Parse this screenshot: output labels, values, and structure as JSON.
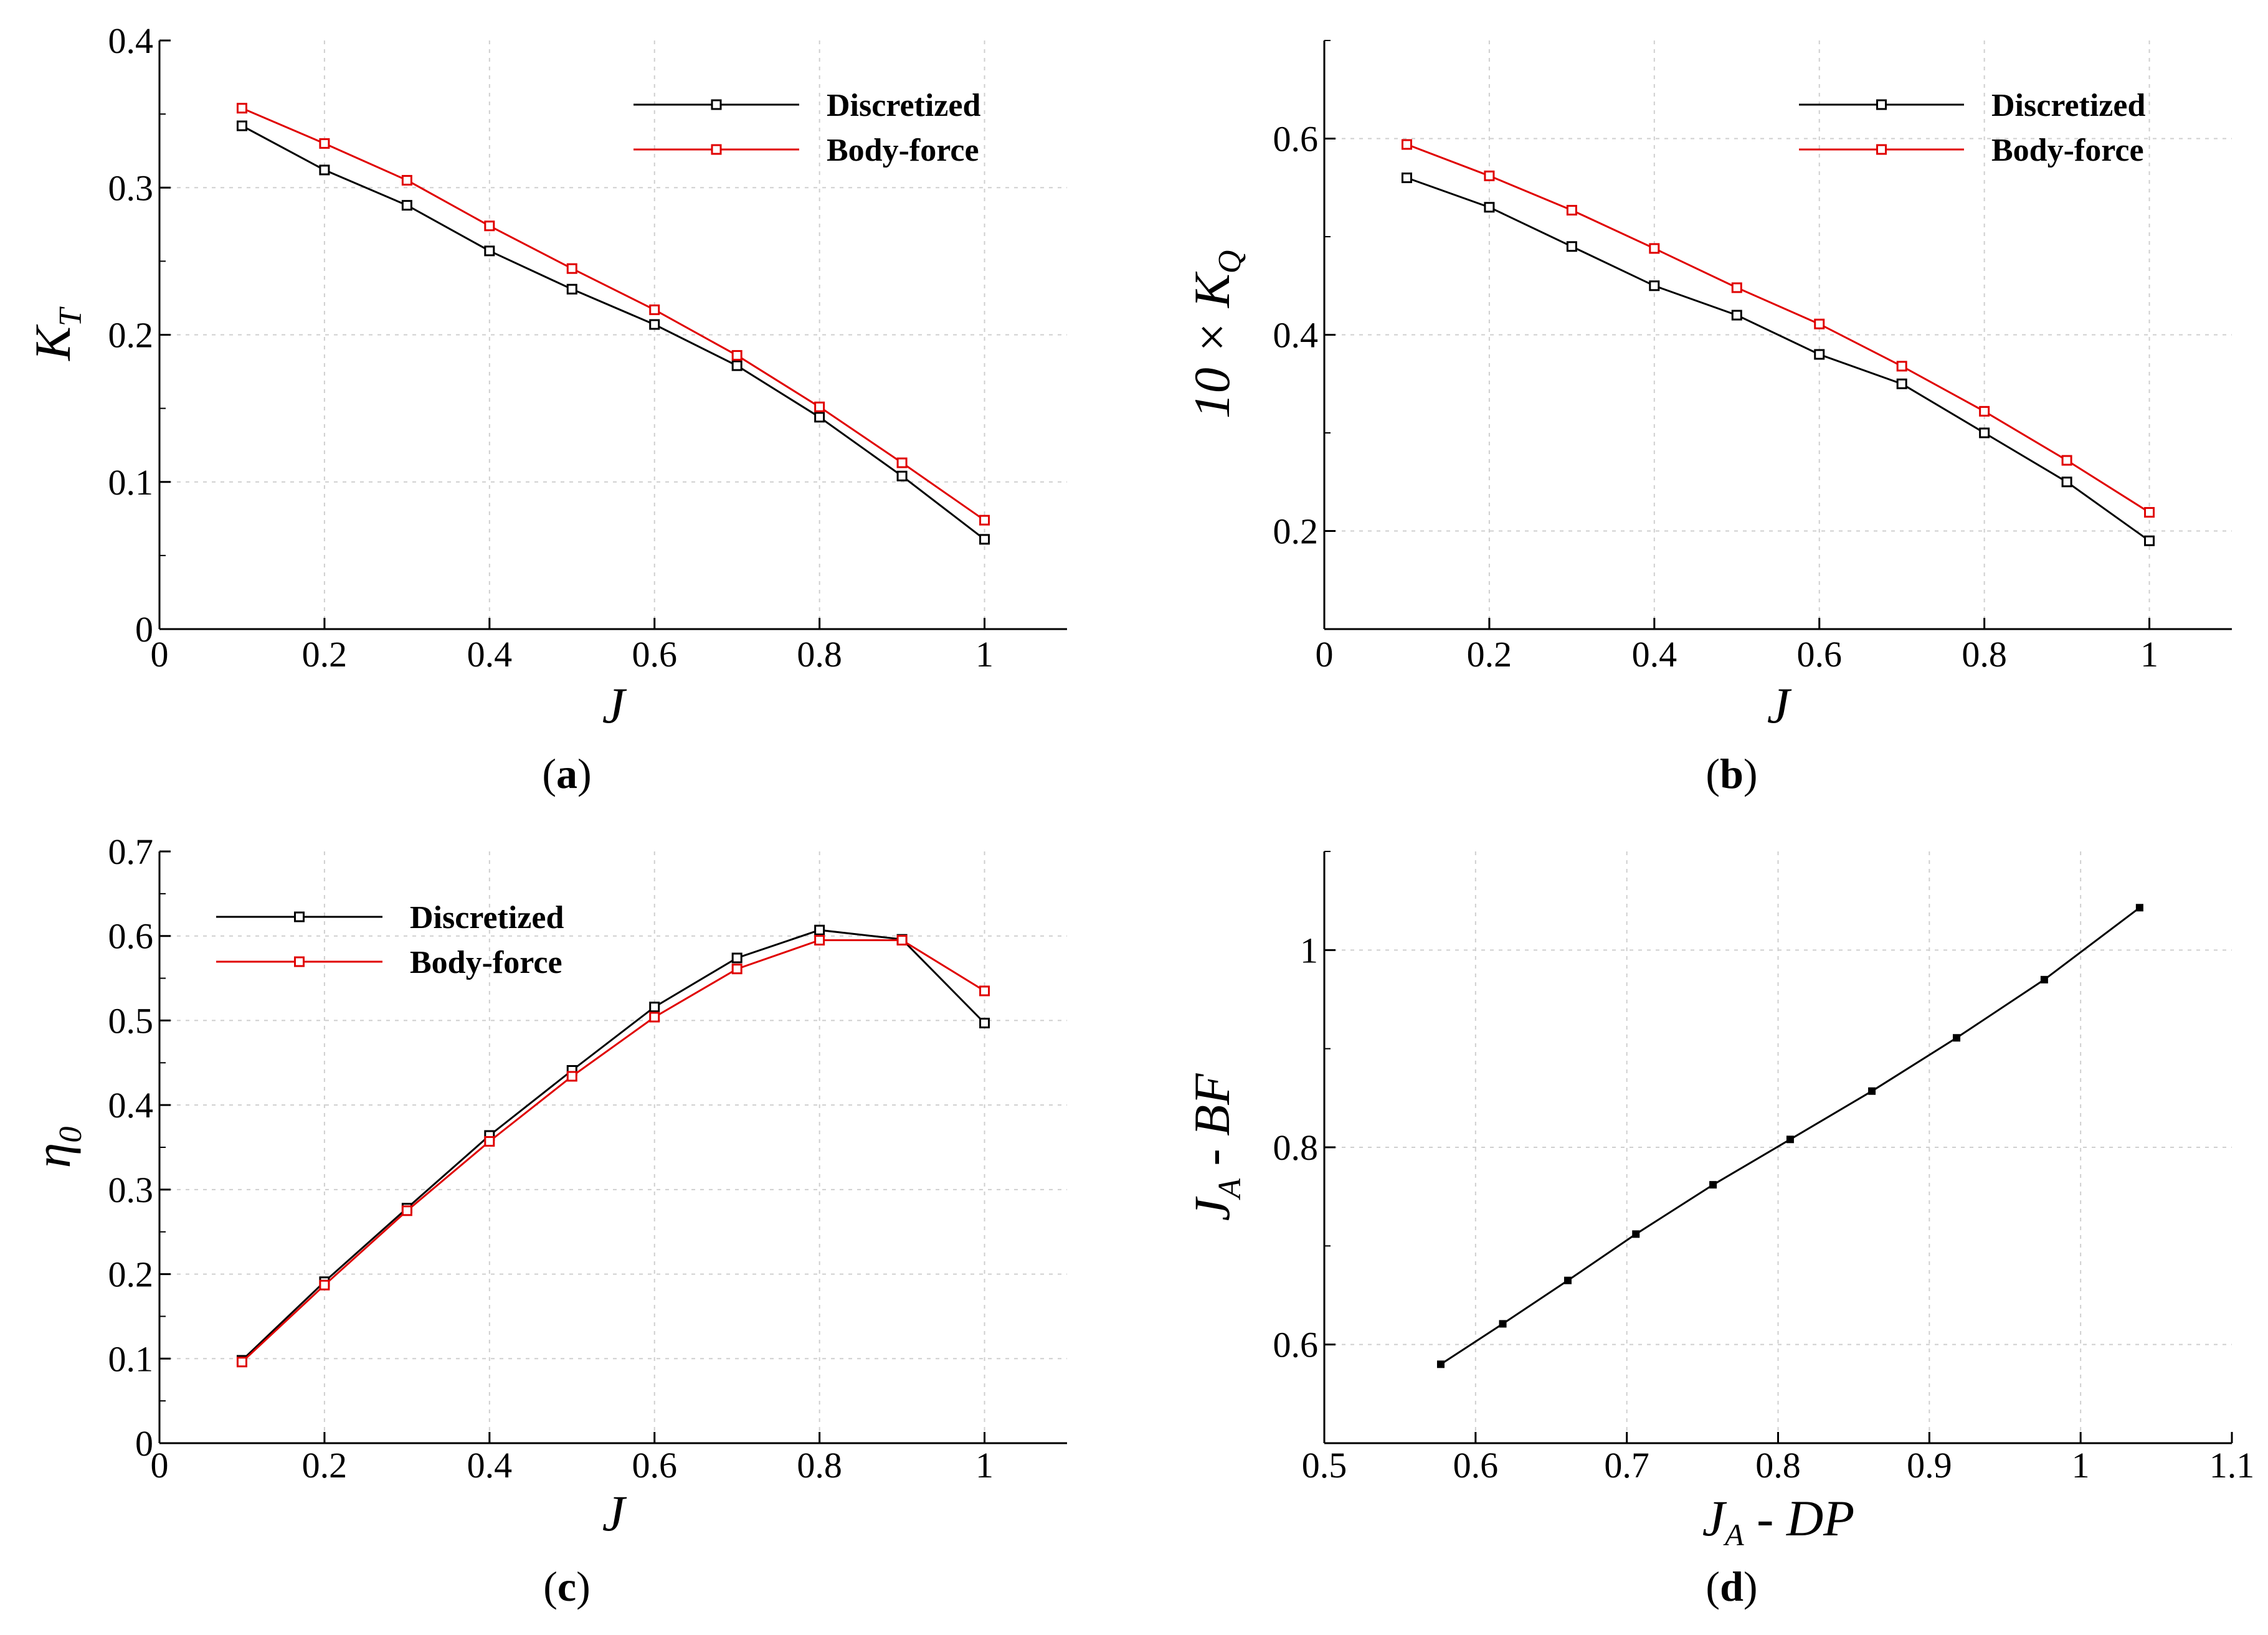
{
  "chart_data": [
    {
      "id": "a",
      "type": "line",
      "caption": "a",
      "xlabel": "J",
      "ylabel_main": "K",
      "ylabel_sub": "T",
      "xlim": [
        0,
        1.1
      ],
      "ylim": [
        0,
        0.4
      ],
      "xticks": [
        "0",
        "0.2",
        "0.4",
        "0.6",
        "0.8",
        "1"
      ],
      "yticks": [
        "0",
        "0.1",
        "0.2",
        "0.3",
        "0.4"
      ],
      "legend_position": "top-right",
      "x": [
        0.1,
        0.2,
        0.3,
        0.4,
        0.5,
        0.6,
        0.7,
        0.8,
        0.9,
        1.0
      ],
      "series": [
        {
          "name": "Discretized",
          "color": "#000000",
          "values": [
            0.342,
            0.312,
            0.288,
            0.257,
            0.231,
            0.207,
            0.179,
            0.144,
            0.104,
            0.061
          ]
        },
        {
          "name": "Body-force",
          "color": "#e00000",
          "values": [
            0.354,
            0.33,
            0.305,
            0.274,
            0.245,
            0.217,
            0.186,
            0.151,
            0.113,
            0.074
          ]
        }
      ]
    },
    {
      "id": "b",
      "type": "line",
      "caption": "b",
      "xlabel": "J",
      "ylabel_main": "10 × K",
      "ylabel_sub": "Q",
      "xlim": [
        0,
        1.1
      ],
      "ylim": [
        0.1,
        0.7
      ],
      "xticks": [
        "0",
        "0.2",
        "0.4",
        "0.6",
        "0.8",
        "1"
      ],
      "yticks": [
        "0.2",
        "0.4",
        "0.6"
      ],
      "legend_position": "top-right",
      "x": [
        0.1,
        0.2,
        0.3,
        0.4,
        0.5,
        0.6,
        0.7,
        0.8,
        0.9,
        1.0
      ],
      "series": [
        {
          "name": "Discretized",
          "color": "#000000",
          "values": [
            0.56,
            0.53,
            0.49,
            0.45,
            0.42,
            0.38,
            0.35,
            0.3,
            0.25,
            0.19
          ]
        },
        {
          "name": "Body-force",
          "color": "#e00000",
          "values": [
            0.594,
            0.562,
            0.527,
            0.488,
            0.448,
            0.411,
            0.368,
            0.322,
            0.272,
            0.219
          ]
        }
      ]
    },
    {
      "id": "c",
      "type": "line",
      "caption": "c",
      "xlabel": "J",
      "ylabel_main": "η",
      "ylabel_sub": "0",
      "xlim": [
        0,
        1.1
      ],
      "ylim": [
        0,
        0.7
      ],
      "xticks": [
        "0",
        "0.2",
        "0.4",
        "0.6",
        "0.8",
        "1"
      ],
      "yticks": [
        "0",
        "0.1",
        "0.2",
        "0.3",
        "0.4",
        "0.5",
        "0.6",
        "0.7"
      ],
      "legend_position": "top-left",
      "x": [
        0.1,
        0.2,
        0.3,
        0.4,
        0.5,
        0.6,
        0.7,
        0.8,
        0.9,
        1.0
      ],
      "series": [
        {
          "name": "Discretized",
          "color": "#000000",
          "values": [
            0.098,
            0.191,
            0.278,
            0.364,
            0.441,
            0.516,
            0.574,
            0.607,
            0.596,
            0.497
          ]
        },
        {
          "name": "Body-force",
          "color": "#e00000",
          "values": [
            0.096,
            0.187,
            0.275,
            0.357,
            0.434,
            0.504,
            0.561,
            0.595,
            0.595,
            0.535
          ]
        }
      ]
    },
    {
      "id": "d",
      "type": "line",
      "caption": "d",
      "xlabel_main": "J",
      "xlabel_sub": "A",
      "xlabel_rest": " - DP",
      "ylabel_main": "J",
      "ylabel_sub": "A",
      "ylabel_rest": " - BF",
      "xlim": [
        0.5,
        1.1
      ],
      "ylim": [
        0.5,
        1.1
      ],
      "xticks": [
        "0.5",
        "0.6",
        "0.7",
        "0.8",
        "0.9",
        "1",
        "1.1"
      ],
      "yticks": [
        "0.6",
        "0.8",
        "1"
      ],
      "x": [
        0.577,
        0.618,
        0.661,
        0.706,
        0.757,
        0.808,
        0.862,
        0.918,
        0.976,
        1.039
      ],
      "series": [
        {
          "name": "JA",
          "color": "#000000",
          "values": [
            0.58,
            0.621,
            0.665,
            0.712,
            0.762,
            0.808,
            0.857,
            0.911,
            0.97,
            1.043
          ]
        }
      ]
    }
  ]
}
